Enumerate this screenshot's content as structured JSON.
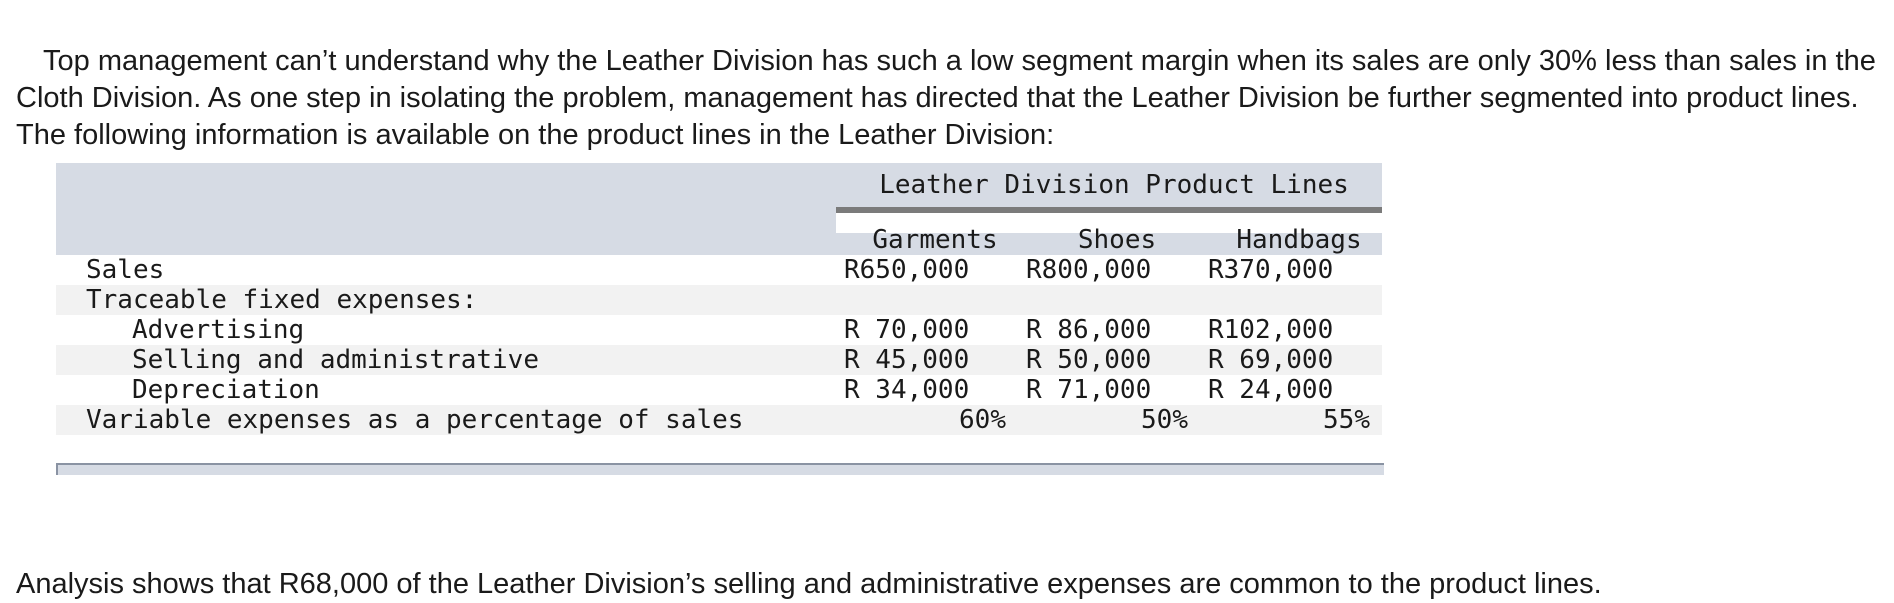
{
  "intro_text": "Top management can’t understand why the Leather Division has such a low segment margin when its sales are only 30% less than sales in the Cloth Division. As one step in isolating the problem, management has directed that the Leather Division be further segmented into product lines. The following information is available on the product lines in the Leather Division:",
  "table": {
    "group_title": "Leather Division Product Lines",
    "columns": [
      "Garments",
      "Shoes",
      "Handbags"
    ],
    "rows": [
      {
        "label": "Sales",
        "values": [
          "R650,000",
          "R800,000",
          "R370,000"
        ]
      },
      {
        "label": "Traceable fixed expenses:",
        "values": [
          "",
          "",
          ""
        ]
      },
      {
        "label": "Advertising",
        "values": [
          "R 70,000",
          "R 86,000",
          "R102,000"
        ]
      },
      {
        "label": "Selling and administrative",
        "values": [
          "R 45,000",
          "R 50,000",
          "R 69,000"
        ]
      },
      {
        "label": "Depreciation",
        "values": [
          "R 34,000",
          "R 71,000",
          "R 24,000"
        ]
      },
      {
        "label": "Variable expenses as a percentage of sales",
        "values": [
          "60%",
          "50%",
          "55%"
        ]
      }
    ]
  },
  "footer_text": "Analysis shows that R68,000 of the Leather Division’s selling and administrative expenses are common to the product lines.",
  "colors": {
    "header_band": "#d6dbe4",
    "row_shade": "#f2f2f2",
    "rule": "#7b7b7b"
  }
}
